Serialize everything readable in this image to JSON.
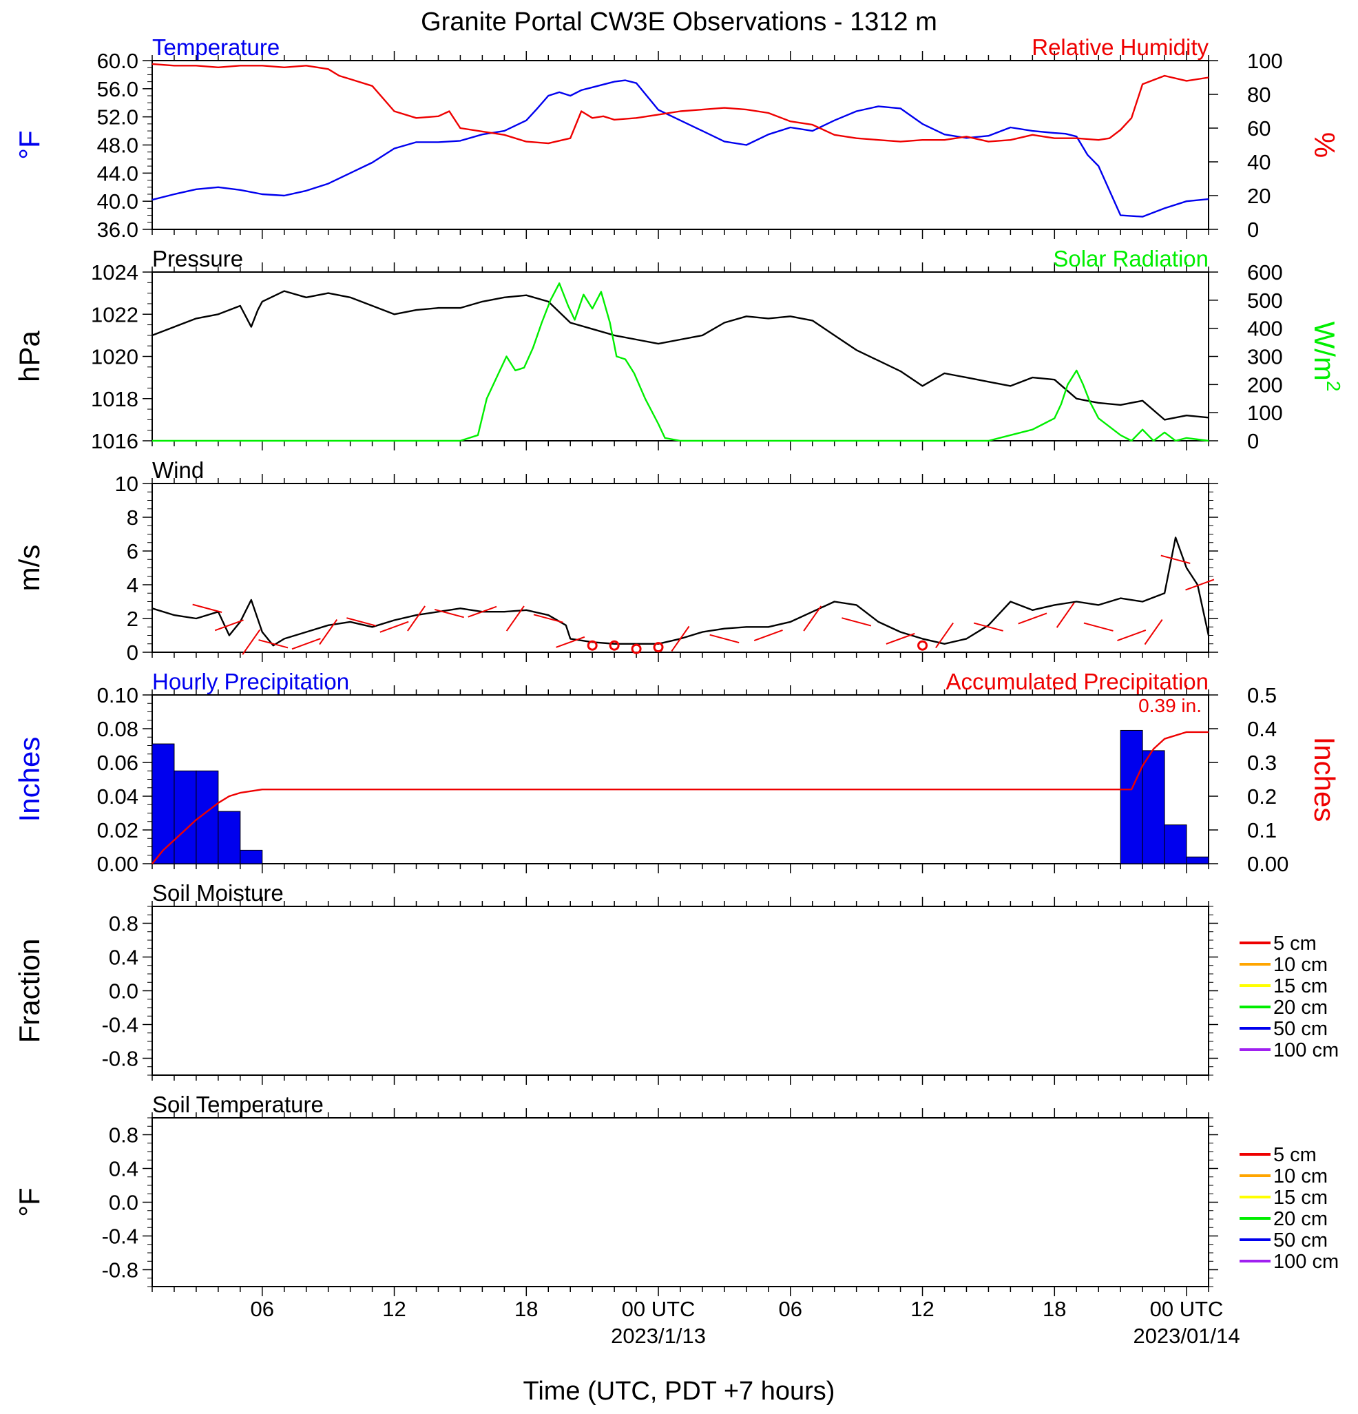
{
  "title": "Granite Portal CW3E Observations - 1312 m",
  "colors": {
    "temperature": "#0000ee",
    "humidity": "#ee0000",
    "pressure": "#000000",
    "solar": "#00ee00",
    "wind": "#000000",
    "barb": "#ee0000",
    "precip_bar": "#0000ee",
    "accum": "#ee0000"
  },
  "chart_data": [
    {
      "id": "temp-rh",
      "type": "line",
      "left_title": "Temperature",
      "right_title": "Relative Humidity",
      "ylabel_left": "°F",
      "ylabel_right": "%",
      "ylim_left": [
        36,
        60
      ],
      "ylim_right": [
        0,
        100
      ],
      "yticks_left": [
        "60.0",
        "56.0",
        "52.0",
        "48.0",
        "44.0",
        "40.0",
        "36.0"
      ],
      "yticks_right": [
        "100",
        "80",
        "60",
        "40",
        "20",
        "0"
      ],
      "xlim_hours": [
        1,
        49
      ],
      "series": [
        {
          "name": "Temperature",
          "axis": "left",
          "x": [
            1,
            2,
            3,
            4,
            5,
            6,
            7,
            8,
            9,
            10,
            11,
            12,
            13,
            14,
            15,
            16,
            17,
            18,
            18.5,
            19,
            19.5,
            20,
            20.5,
            21,
            21.5,
            22,
            22.5,
            23,
            24,
            25,
            26,
            27,
            28,
            29,
            30,
            31,
            32,
            33,
            34,
            35,
            36,
            37,
            38,
            39,
            40,
            41,
            42,
            42.5,
            43,
            43.5,
            44,
            45,
            46,
            47,
            48,
            49
          ],
          "y": [
            40.2,
            41.0,
            41.7,
            42.0,
            41.6,
            41.0,
            40.8,
            41.5,
            42.5,
            44.0,
            45.5,
            47.5,
            48.4,
            48.4,
            48.6,
            49.5,
            50.0,
            51.5,
            53.2,
            55.0,
            55.5,
            55.0,
            55.8,
            56.2,
            56.6,
            57.0,
            57.2,
            56.8,
            53.0,
            51.5,
            50.0,
            48.5,
            48.0,
            49.5,
            50.5,
            50.0,
            51.5,
            52.8,
            53.5,
            53.2,
            51.0,
            49.5,
            49.0,
            49.3,
            50.5,
            50.0,
            49.7,
            49.6,
            49.2,
            46.6,
            45.0,
            38.0,
            37.8,
            39.0,
            40.0,
            40.3
          ]
        },
        {
          "name": "Relative Humidity",
          "axis": "right",
          "x": [
            1,
            2,
            3,
            4,
            5,
            6,
            7,
            8,
            9,
            9.5,
            10,
            11,
            12,
            13,
            14,
            14.5,
            15,
            16,
            17,
            18,
            19,
            20,
            20.5,
            21,
            21.5,
            22,
            23,
            24,
            25,
            26,
            27,
            28,
            29,
            30,
            31,
            32,
            33,
            34,
            35,
            36,
            37,
            38,
            39,
            40,
            41,
            42,
            43,
            44,
            44.5,
            45,
            45.5,
            46,
            47,
            48,
            49
          ],
          "y": [
            98,
            97,
            97,
            96,
            97,
            97,
            96,
            97,
            95,
            91,
            89,
            85,
            70,
            66,
            67,
            70,
            60,
            58,
            56,
            52,
            51,
            54,
            70,
            66,
            67,
            65,
            66,
            68,
            70,
            71,
            72,
            71,
            69,
            64,
            62,
            56,
            54,
            53,
            52,
            53,
            53,
            55,
            52,
            53,
            56,
            54,
            54,
            53,
            54,
            59,
            66,
            86,
            91,
            88,
            90
          ]
        }
      ]
    },
    {
      "id": "pressure-solar",
      "type": "line",
      "left_title": "Pressure",
      "right_title": "Solar Radiation",
      "ylabel_left": "hPa",
      "ylabel_right_base": "W/m",
      "ylabel_right_sup": "2",
      "ylim_left": [
        1016,
        1024
      ],
      "ylim_right": [
        0,
        600
      ],
      "yticks_left": [
        "1024",
        "1022",
        "1020",
        "1018",
        "1016"
      ],
      "yticks_right": [
        "600",
        "500",
        "400",
        "300",
        "200",
        "100",
        "0"
      ],
      "xlim_hours": [
        1,
        49
      ],
      "series": [
        {
          "name": "Pressure",
          "axis": "left",
          "x": [
            1,
            2,
            3,
            4,
            5,
            5.5,
            5.8,
            6,
            7,
            8,
            9,
            10,
            11,
            12,
            13,
            14,
            15,
            16,
            17,
            18,
            19,
            20,
            21,
            22,
            23,
            24,
            25,
            26,
            27,
            28,
            29,
            30,
            31,
            32,
            33,
            34,
            35,
            36,
            37,
            38,
            39,
            40,
            41,
            42,
            43,
            44,
            45,
            46,
            47,
            48,
            49
          ],
          "y": [
            1021.0,
            1021.4,
            1021.8,
            1022.0,
            1022.4,
            1021.4,
            1022.2,
            1022.6,
            1023.1,
            1022.8,
            1023.0,
            1022.8,
            1022.4,
            1022.0,
            1022.2,
            1022.3,
            1022.3,
            1022.6,
            1022.8,
            1022.9,
            1022.6,
            1021.6,
            1021.3,
            1021.0,
            1020.8,
            1020.6,
            1020.8,
            1021.0,
            1021.6,
            1021.9,
            1021.8,
            1021.9,
            1021.7,
            1021.0,
            1020.3,
            1019.8,
            1019.3,
            1018.6,
            1019.2,
            1019.0,
            1018.8,
            1018.6,
            1019.0,
            1018.9,
            1018.0,
            1017.8,
            1017.7,
            1017.9,
            1017.0,
            1017.2,
            1017.1
          ]
        },
        {
          "name": "Solar Radiation",
          "axis": "right",
          "x": [
            1,
            15,
            15.8,
            16.2,
            16.8,
            17.1,
            17.5,
            17.9,
            18.3,
            18.7,
            19.1,
            19.5,
            19.9,
            20.2,
            20.6,
            21.0,
            21.4,
            21.8,
            22.1,
            22.5,
            22.9,
            23.4,
            24.0,
            24.3,
            25,
            39,
            40,
            41,
            41.5,
            42,
            42.3,
            42.6,
            43,
            43.3,
            43.6,
            44,
            45,
            45.5,
            46,
            46.5,
            47,
            47.5,
            48,
            49
          ],
          "y": [
            0,
            0,
            20,
            150,
            250,
            300,
            250,
            260,
            330,
            420,
            500,
            560,
            480,
            430,
            520,
            470,
            530,
            420,
            300,
            290,
            240,
            150,
            60,
            10,
            0,
            0,
            20,
            40,
            60,
            80,
            130,
            200,
            250,
            200,
            140,
            80,
            20,
            0,
            40,
            0,
            30,
            0,
            10,
            0
          ]
        }
      ]
    },
    {
      "id": "wind",
      "type": "line",
      "left_title": "Wind",
      "ylabel_left": "m/s",
      "ylim_left": [
        0,
        10
      ],
      "yticks_left": [
        "10",
        "8",
        "6",
        "4",
        "2",
        "0"
      ],
      "xlim_hours": [
        1,
        49
      ],
      "series": [
        {
          "name": "Wind",
          "axis": "left",
          "x": [
            1,
            2,
            3,
            4,
            4.5,
            5,
            5.5,
            6,
            6.5,
            7,
            8,
            9,
            10,
            11,
            12,
            13,
            14,
            15,
            16,
            17,
            18,
            19,
            19.8,
            20,
            21,
            22,
            23,
            24,
            25,
            26,
            27,
            28,
            29,
            30,
            31,
            32,
            33,
            34,
            35,
            36,
            37,
            38,
            39,
            40,
            41,
            42,
            43,
            44,
            45,
            46,
            47,
            47.5,
            48,
            48.5,
            49
          ],
          "y": [
            2.6,
            2.2,
            2.0,
            2.4,
            1.0,
            1.8,
            3.1,
            1.2,
            0.4,
            0.8,
            1.2,
            1.6,
            1.8,
            1.5,
            1.9,
            2.2,
            2.4,
            2.6,
            2.4,
            2.4,
            2.5,
            2.2,
            1.6,
            0.8,
            0.6,
            0.5,
            0.5,
            0.5,
            0.8,
            1.2,
            1.4,
            1.5,
            1.5,
            1.8,
            2.4,
            3.0,
            2.8,
            1.8,
            1.2,
            0.8,
            0.5,
            0.8,
            1.6,
            3.0,
            2.5,
            2.8,
            3.0,
            2.8,
            3.2,
            3.0,
            3.5,
            6.8,
            5.0,
            4.0,
            1.0
          ]
        }
      ],
      "barbs": [
        {
          "x": 3.5,
          "y": 2.6
        },
        {
          "x": 4.5,
          "y": 1.6
        },
        {
          "x": 5.5,
          "y": 0.6
        },
        {
          "x": 6.5,
          "y": 0.5
        },
        {
          "x": 8,
          "y": 0.5
        },
        {
          "x": 9,
          "y": 1.2
        },
        {
          "x": 10.5,
          "y": 1.8
        },
        {
          "x": 12,
          "y": 1.5
        },
        {
          "x": 13,
          "y": 2.0
        },
        {
          "x": 14.5,
          "y": 2.3
        },
        {
          "x": 16,
          "y": 2.4
        },
        {
          "x": 17.5,
          "y": 2.0
        },
        {
          "x": 19,
          "y": 2.0
        },
        {
          "x": 20,
          "y": 0.6
        },
        {
          "x": 25,
          "y": 0.8
        },
        {
          "x": 27,
          "y": 0.8
        },
        {
          "x": 29,
          "y": 1.0
        },
        {
          "x": 31,
          "y": 2.0
        },
        {
          "x": 33,
          "y": 1.8
        },
        {
          "x": 35,
          "y": 0.8
        },
        {
          "x": 37,
          "y": 1.0
        },
        {
          "x": 39,
          "y": 1.5
        },
        {
          "x": 41,
          "y": 2.0
        },
        {
          "x": 42.5,
          "y": 2.2
        },
        {
          "x": 44,
          "y": 1.5
        },
        {
          "x": 45.5,
          "y": 1.0
        },
        {
          "x": 46.5,
          "y": 1.2
        },
        {
          "x": 47.5,
          "y": 5.5
        },
        {
          "x": 48.6,
          "y": 4.0
        }
      ],
      "calms": [
        {
          "x": 21,
          "y": 0.4
        },
        {
          "x": 22,
          "y": 0.4
        },
        {
          "x": 23,
          "y": 0.2
        },
        {
          "x": 24,
          "y": 0.3
        },
        {
          "x": 36,
          "y": 0.4
        }
      ]
    },
    {
      "id": "precip",
      "type": "bar",
      "left_title": "Hourly Precipitation",
      "right_title": "Accumulated Precipitation",
      "ylabel_left": "Inches",
      "ylabel_right": "Inches",
      "annotation": "0.39 in.",
      "ylim_left": [
        0,
        0.1
      ],
      "ylim_right": [
        0,
        0.5
      ],
      "yticks_left": [
        "0.10",
        "0.08",
        "0.06",
        "0.04",
        "0.02",
        "0.00"
      ],
      "yticks_right": [
        "0.5",
        "0.4",
        "0.3",
        "0.2",
        "0.1",
        "0.00"
      ],
      "xlim_hours": [
        1,
        49
      ],
      "bars": [
        {
          "x0": 1,
          "x1": 2,
          "value": 0.071
        },
        {
          "x0": 2,
          "x1": 3,
          "value": 0.055
        },
        {
          "x0": 3,
          "x1": 4,
          "value": 0.055
        },
        {
          "x0": 4,
          "x1": 5,
          "value": 0.031
        },
        {
          "x0": 5,
          "x1": 6,
          "value": 0.008
        },
        {
          "x0": 45,
          "x1": 46,
          "value": 0.079
        },
        {
          "x0": 46,
          "x1": 47,
          "value": 0.067
        },
        {
          "x0": 47,
          "x1": 48,
          "value": 0.023
        },
        {
          "x0": 48,
          "x1": 49,
          "value": 0.004
        }
      ],
      "series": [
        {
          "name": "Accumulated Precipitation",
          "axis": "right",
          "x": [
            1,
            1.5,
            2,
            3,
            4,
            4.5,
            5,
            6,
            45.5,
            46,
            46.5,
            47,
            48,
            49
          ],
          "y": [
            0.0,
            0.04,
            0.07,
            0.13,
            0.18,
            0.2,
            0.21,
            0.22,
            0.22,
            0.29,
            0.34,
            0.37,
            0.39,
            0.39
          ]
        }
      ]
    },
    {
      "id": "soil-moisture",
      "type": "line",
      "left_title": "Soil Moisture",
      "ylabel_left": "Fraction",
      "ylim_left": [
        -1,
        1
      ],
      "yticks_left": [
        "0.8",
        "0.4",
        "0.0",
        "-0.4",
        "-0.8"
      ],
      "ytick_values": [
        0.8,
        0.4,
        0.0,
        -0.4,
        -0.8
      ],
      "xlim_hours": [
        1,
        49
      ],
      "legend": [
        {
          "name": "5 cm",
          "color": "#ee0000"
        },
        {
          "name": "10 cm",
          "color": "#ffa500"
        },
        {
          "name": "15 cm",
          "color": "#ffff00"
        },
        {
          "name": "20 cm",
          "color": "#00ee00"
        },
        {
          "name": "50 cm",
          "color": "#0000ee"
        },
        {
          "name": "100 cm",
          "color": "#a020f0"
        }
      ],
      "series": []
    },
    {
      "id": "soil-temperature",
      "type": "line",
      "left_title": "Soil Temperature",
      "ylabel_left": "°F",
      "ylim_left": [
        -1,
        1
      ],
      "yticks_left": [
        "0.8",
        "0.4",
        "0.0",
        "-0.4",
        "-0.8"
      ],
      "ytick_values": [
        0.8,
        0.4,
        0.0,
        -0.4,
        -0.8
      ],
      "xlim_hours": [
        1,
        49
      ],
      "legend": [
        {
          "name": "5 cm",
          "color": "#ee0000"
        },
        {
          "name": "10 cm",
          "color": "#ffa500"
        },
        {
          "name": "15 cm",
          "color": "#ffff00"
        },
        {
          "name": "20 cm",
          "color": "#00ee00"
        },
        {
          "name": "50 cm",
          "color": "#0000ee"
        },
        {
          "name": "100 cm",
          "color": "#a020f0"
        }
      ],
      "series": []
    }
  ],
  "x_axis": {
    "label": "Time (UTC, PDT +7 hours)",
    "ticks": [
      {
        "hour": 6,
        "label": "06"
      },
      {
        "hour": 12,
        "label": "12"
      },
      {
        "hour": 18,
        "label": "18"
      },
      {
        "hour": 24,
        "label": "00 UTC",
        "sublabel": "2023/1/13"
      },
      {
        "hour": 30,
        "label": "06"
      },
      {
        "hour": 36,
        "label": "12"
      },
      {
        "hour": 42,
        "label": "18"
      },
      {
        "hour": 48,
        "label": "00 UTC",
        "sublabel": "2023/01/14"
      }
    ]
  }
}
